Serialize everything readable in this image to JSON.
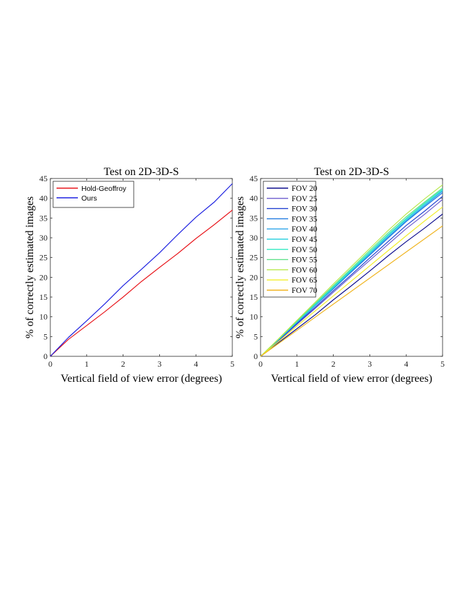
{
  "chart_data": [
    {
      "type": "line",
      "title": "Test on 2D-3D-S",
      "xlabel": "Vertical field of view error (degrees)",
      "ylabel": "% of correctly estimated images",
      "xlim": [
        0,
        5
      ],
      "ylim": [
        0,
        45
      ],
      "xticks": [
        "0",
        "1",
        "2",
        "3",
        "4",
        "5"
      ],
      "yticks": [
        "0",
        "5",
        "10",
        "15",
        "20",
        "25",
        "30",
        "35",
        "40",
        "45"
      ],
      "grid": false,
      "legend": "top-left",
      "series": [
        {
          "name": "Hold-Geoffroy",
          "color": "#e8141a",
          "x": [
            0,
            0.5,
            1,
            1.5,
            2,
            2.5,
            3,
            3.5,
            4,
            4.5,
            5
          ],
          "values": [
            0,
            4.3,
            7.8,
            11.3,
            15,
            18.9,
            22.5,
            26,
            29.8,
            33.3,
            37.0
          ]
        },
        {
          "name": "Ours",
          "color": "#1a1ee0",
          "x": [
            0,
            0.5,
            1,
            1.5,
            2,
            2.5,
            3,
            3.5,
            4,
            4.5,
            5
          ],
          "values": [
            0,
            4.8,
            9.0,
            13.3,
            17.9,
            22.0,
            26.2,
            30.8,
            35.2,
            39.0,
            43.7
          ]
        }
      ]
    },
    {
      "type": "line",
      "title": "Test on 2D-3D-S",
      "xlabel": "Vertical field of view error (degrees)",
      "ylabel": "% of correctly estimated images",
      "xlim": [
        0,
        5
      ],
      "ylim": [
        0,
        45
      ],
      "xticks": [
        "0",
        "1",
        "2",
        "3",
        "4",
        "5"
      ],
      "yticks": [
        "0",
        "5",
        "10",
        "15",
        "20",
        "25",
        "30",
        "35",
        "40",
        "45"
      ],
      "grid": false,
      "legend": "top-left",
      "series": [
        {
          "name": "FOV 20",
          "color": "#0a0a8c",
          "x": [
            0,
            0.5,
            1,
            1.5,
            2,
            2.5,
            3,
            3.5,
            4,
            4.5,
            5
          ],
          "values": [
            0,
            3.5,
            7.0,
            10.5,
            14.3,
            17.9,
            21.6,
            25.4,
            29.0,
            32.4,
            36.0
          ]
        },
        {
          "name": "FOV 25",
          "color": "#6a5acd",
          "x": [
            0,
            0.5,
            1,
            1.5,
            2,
            2.5,
            3,
            3.5,
            4,
            4.5,
            5
          ],
          "values": [
            0,
            4.0,
            8.1,
            12.1,
            16.2,
            20.3,
            24.3,
            28.3,
            32.3,
            35.9,
            39.7
          ]
        },
        {
          "name": "FOV 30",
          "color": "#1f3fd0",
          "x": [
            0,
            0.5,
            1,
            1.5,
            2,
            2.5,
            3,
            3.5,
            4,
            4.5,
            5
          ],
          "values": [
            0,
            4.1,
            8.3,
            12.4,
            16.6,
            20.7,
            24.9,
            29.0,
            33.1,
            36.7,
            40.5
          ]
        },
        {
          "name": "FOV 35",
          "color": "#1f78e0",
          "x": [
            0,
            0.5,
            1,
            1.5,
            2,
            2.5,
            3,
            3.5,
            4,
            4.5,
            5
          ],
          "values": [
            0,
            4.2,
            8.5,
            12.8,
            17.1,
            21.4,
            25.6,
            29.9,
            34.1,
            37.8,
            41.4
          ]
        },
        {
          "name": "FOV 40",
          "color": "#29a3ea",
          "x": [
            0,
            0.5,
            1,
            1.5,
            2,
            2.5,
            3,
            3.5,
            4,
            4.5,
            5
          ],
          "values": [
            0,
            4.3,
            8.6,
            12.9,
            17.3,
            21.6,
            25.9,
            30.2,
            34.3,
            38.1,
            41.8
          ]
        },
        {
          "name": "FOV 45",
          "color": "#2ed1e0",
          "x": [
            0,
            0.5,
            1,
            1.5,
            2,
            2.5,
            3,
            3.5,
            4,
            4.5,
            5
          ],
          "values": [
            0,
            4.3,
            8.7,
            13.0,
            17.4,
            21.8,
            26.1,
            30.5,
            34.6,
            38.4,
            42.0
          ]
        },
        {
          "name": "FOV 50",
          "color": "#2ee8c0",
          "x": [
            0,
            0.5,
            1,
            1.5,
            2,
            2.5,
            3,
            3.5,
            4,
            4.5,
            5
          ],
          "values": [
            0,
            4.4,
            8.8,
            13.2,
            17.6,
            22.0,
            26.4,
            30.8,
            34.9,
            38.7,
            42.3
          ]
        },
        {
          "name": "FOV 55",
          "color": "#5fe08a",
          "x": [
            0,
            0.5,
            1,
            1.5,
            2,
            2.5,
            3,
            3.5,
            4,
            4.5,
            5
          ],
          "values": [
            0,
            4.4,
            8.9,
            13.4,
            17.9,
            22.3,
            26.8,
            31.2,
            35.3,
            39.0,
            42.6
          ]
        },
        {
          "name": "FOV 60",
          "color": "#b8e84a",
          "x": [
            0,
            0.5,
            1,
            1.5,
            2,
            2.5,
            3,
            3.5,
            4,
            4.5,
            5
          ],
          "values": [
            0,
            4.5,
            9.1,
            13.7,
            18.3,
            22.8,
            27.3,
            31.8,
            36.0,
            39.8,
            43.4
          ]
        },
        {
          "name": "FOV 65",
          "color": "#f2ee2a",
          "x": [
            0,
            0.5,
            1,
            1.5,
            2,
            2.5,
            3,
            3.5,
            4,
            4.5,
            5
          ],
          "values": [
            0,
            3.8,
            7.7,
            11.5,
            15.3,
            19.1,
            22.9,
            26.7,
            30.5,
            34.2,
            37.8
          ]
        },
        {
          "name": "FOV 70",
          "color": "#f0b41e",
          "x": [
            0,
            0.5,
            1,
            1.5,
            2,
            2.5,
            3,
            3.5,
            4,
            4.5,
            5
          ],
          "values": [
            0,
            3.3,
            6.6,
            9.9,
            13.2,
            16.5,
            19.8,
            23.1,
            26.4,
            29.7,
            33.0
          ]
        }
      ]
    }
  ]
}
